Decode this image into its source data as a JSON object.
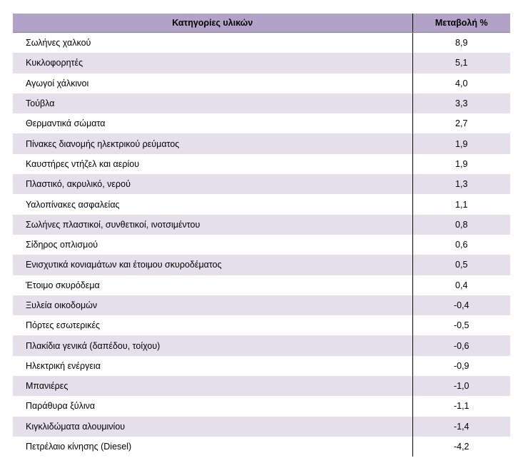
{
  "table": {
    "headers": {
      "category": "Κατηγορίες υλικών",
      "change": "Μεταβολή %"
    },
    "rows": [
      {
        "category": "Σωλήνες χαλκού",
        "change": "8,9"
      },
      {
        "category": "Κυκλοφορητές",
        "change": "5,1"
      },
      {
        "category": "Αγωγοί χάλκινοι",
        "change": "4,0"
      },
      {
        "category": "Τούβλα",
        "change": "3,3"
      },
      {
        "category": "Θερμαντικά σώματα",
        "change": "2,7"
      },
      {
        "category": "Πίνακες διανομής ηλεκτρικού ρεύματος",
        "change": "1,9"
      },
      {
        "category": "Καυστήρες ντήζελ και αερίου",
        "change": "1,9"
      },
      {
        "category": "Πλαστικό, ακρυλικό, νερού",
        "change": "1,3"
      },
      {
        "category": "Υαλοπίνακες ασφαλείας",
        "change": "1,1"
      },
      {
        "category": "Σωλήνες πλαστικοί, συνθετικοί, ινοτσιμέντου",
        "change": "0,8"
      },
      {
        "category": "Σίδηρος οπλισμού",
        "change": "0,6"
      },
      {
        "category": "Ενισχυτικά κονιαμάτων και έτοιμου σκυροδέματος",
        "change": "0,5"
      },
      {
        "category": "Έτοιμο σκυρόδεμα",
        "change": "0,4"
      },
      {
        "category": "Ξυλεία οικοδομών",
        "change": "-0,4"
      },
      {
        "category": "Πόρτες εσωτερικές",
        "change": "-0,5"
      },
      {
        "category": "Πλακίδια γενικά (δαπέδου, τοίχου)",
        "change": "-0,6"
      },
      {
        "category": "Ηλεκτρική ενέργεια",
        "change": "-0,9"
      },
      {
        "category": "Μπανιέρες",
        "change": "-1,0"
      },
      {
        "category": "Παράθυρα ξύλινα",
        "change": "-1,1"
      },
      {
        "category": "Κιγκλιδώματα αλουμινίου",
        "change": "-1,4"
      },
      {
        "category": "Πετρέλαιο κίνησης (Diesel)",
        "change": "-4,2"
      }
    ]
  },
  "colors": {
    "header_bg": "#b3a2c7",
    "stripe_bg": "#e5dfec",
    "row_bg": "#ffffff"
  }
}
